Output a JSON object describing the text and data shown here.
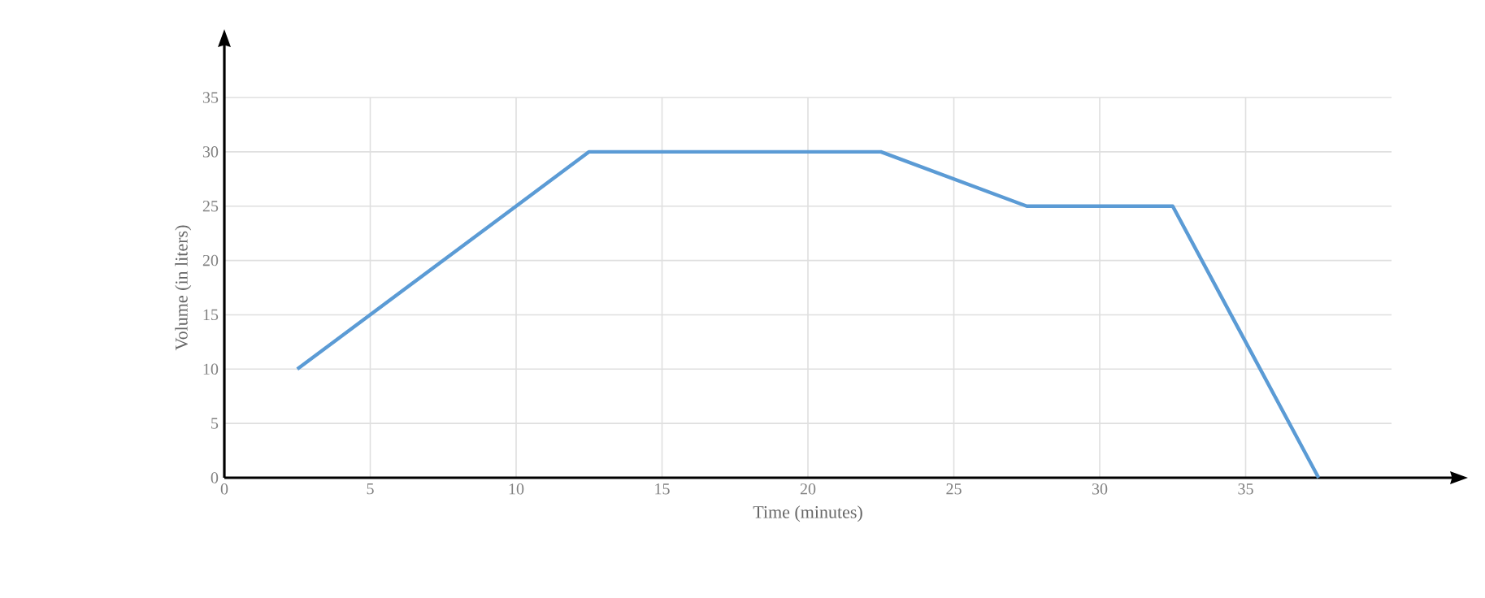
{
  "chart_data": {
    "type": "line",
    "xlabel": "Time  (minutes)",
    "ylabel": "Volume (in liters)",
    "x": [
      2.5,
      12.5,
      22.5,
      27.5,
      32.5,
      37.5
    ],
    "series": [
      {
        "color": "#5b9bd5",
        "values": [
          10,
          30,
          30,
          25,
          25,
          0
        ]
      }
    ],
    "xlim": [
      0,
      40
    ],
    "ylim": [
      0,
      35
    ],
    "xticks": [
      0,
      5,
      10,
      15,
      20,
      25,
      30,
      35
    ],
    "yticks": [
      0,
      5,
      10,
      15,
      20,
      25,
      30,
      35
    ],
    "grid": true,
    "marker": "none",
    "line_style": "solid"
  }
}
